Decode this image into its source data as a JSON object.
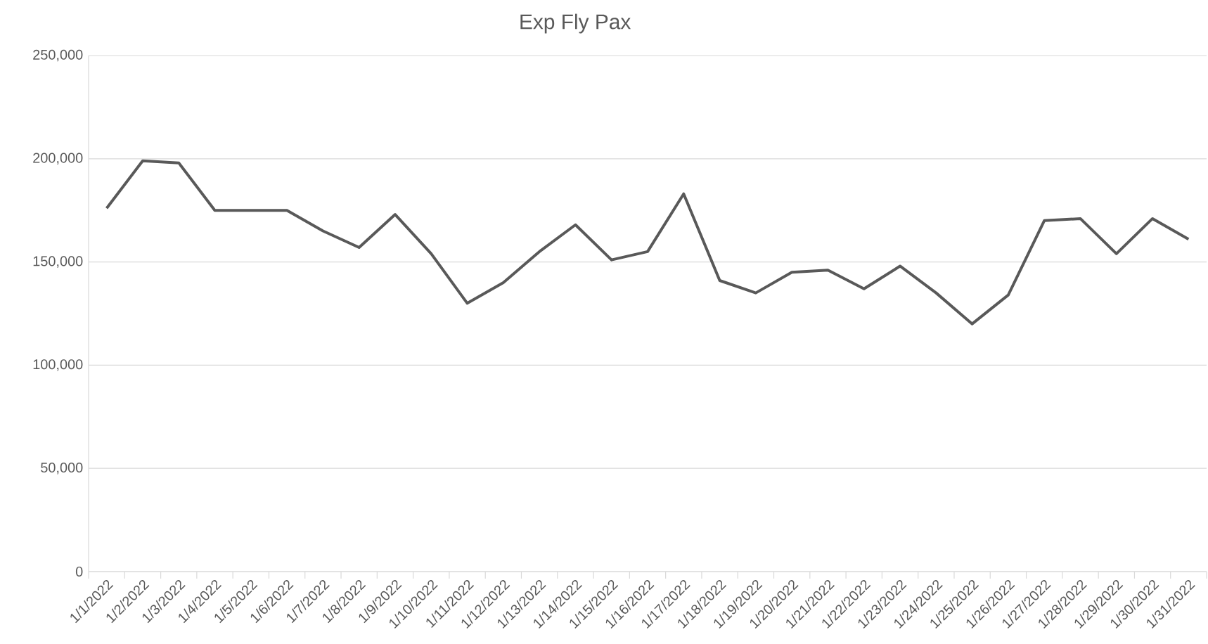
{
  "chart_data": {
    "type": "line",
    "title": "Exp Fly Pax",
    "categories": [
      "1/1/2022",
      "1/2/2022",
      "1/3/2022",
      "1/4/2022",
      "1/5/2022",
      "1/6/2022",
      "1/7/2022",
      "1/8/2022",
      "1/9/2022",
      "1/10/2022",
      "1/11/2022",
      "1/12/2022",
      "1/13/2022",
      "1/14/2022",
      "1/15/2022",
      "1/16/2022",
      "1/17/2022",
      "1/18/2022",
      "1/19/2022",
      "1/20/2022",
      "1/21/2022",
      "1/22/2022",
      "1/23/2022",
      "1/24/2022",
      "1/25/2022",
      "1/26/2022",
      "1/27/2022",
      "1/28/2022",
      "1/29/2022",
      "1/30/2022",
      "1/31/2022"
    ],
    "series": [
      {
        "color": "#595959",
        "values": [
          176000,
          199000,
          198000,
          175000,
          175000,
          175000,
          165000,
          157000,
          173000,
          154000,
          130000,
          140000,
          155000,
          168000,
          151000,
          155000,
          183000,
          141000,
          135000,
          145000,
          146000,
          137000,
          148000,
          135000,
          120000,
          134000,
          170000,
          171000,
          154000,
          171000,
          161000
        ]
      }
    ],
    "ylim": [
      0,
      250000
    ],
    "yticks": [
      {
        "value": 0,
        "label": "0"
      },
      {
        "value": 50000,
        "label": "50,000"
      },
      {
        "value": 100000,
        "label": "100,000"
      },
      {
        "value": 150000,
        "label": "150,000"
      },
      {
        "value": 200000,
        "label": "200,000"
      },
      {
        "value": 250000,
        "label": "250,000"
      }
    ],
    "grid": "y",
    "legend": false,
    "marker": "none",
    "line_style": "solid"
  }
}
